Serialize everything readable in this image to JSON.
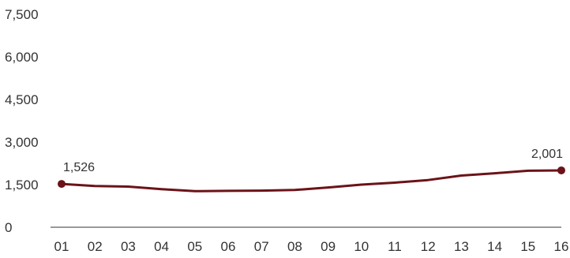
{
  "chart_data": {
    "type": "line",
    "title": "",
    "xlabel": "",
    "ylabel": "",
    "categories": [
      "01",
      "02",
      "03",
      "04",
      "05",
      "06",
      "07",
      "08",
      "09",
      "10",
      "11",
      "12",
      "13",
      "14",
      "15",
      "16"
    ],
    "series": [
      {
        "values": [
          1526,
          1450,
          1430,
          1340,
          1270,
          1280,
          1290,
          1310,
          1400,
          1500,
          1570,
          1660,
          1820,
          1900,
          1990,
          2001
        ],
        "color": "#6b1319"
      }
    ],
    "ylim": [
      0,
      7500
    ],
    "yticks": [
      0,
      1500,
      3000,
      4500,
      6000,
      7500
    ],
    "ytick_labels": [
      "0",
      "1,500",
      "3,000",
      "4,500",
      "6,000",
      "7,500"
    ],
    "data_labels": [
      {
        "index": 0,
        "text": "1,526"
      },
      {
        "index": 15,
        "text": "2,001"
      }
    ],
    "grid": false,
    "legend": "none",
    "axis_color": "#333333"
  }
}
